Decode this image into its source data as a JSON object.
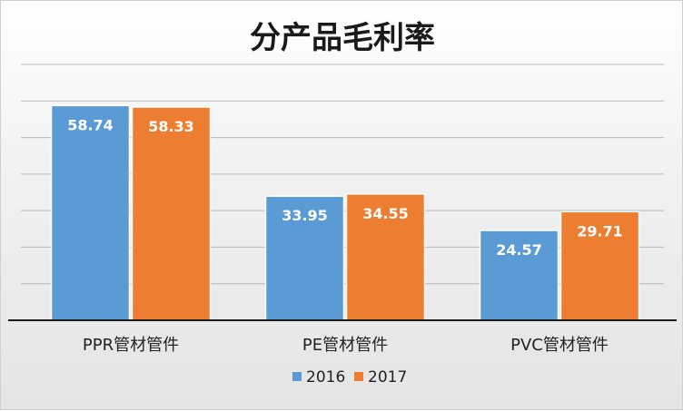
{
  "chart_data": {
    "type": "bar",
    "title": "分产品毛利率",
    "xlabel": "",
    "ylabel": "",
    "categories": [
      "PPR管材管件",
      "PE管材管件",
      "PVC管材管件"
    ],
    "series": [
      {
        "name": "2016",
        "values": [
          58.74,
          33.95,
          24.57
        ],
        "color": "#5b9bd5"
      },
      {
        "name": "2017",
        "values": [
          58.33,
          34.55,
          29.71
        ],
        "color": "#ed7d31"
      }
    ],
    "ylim": [
      0,
      70
    ],
    "grid": true,
    "legend_position": "bottom",
    "data_labels": true
  }
}
